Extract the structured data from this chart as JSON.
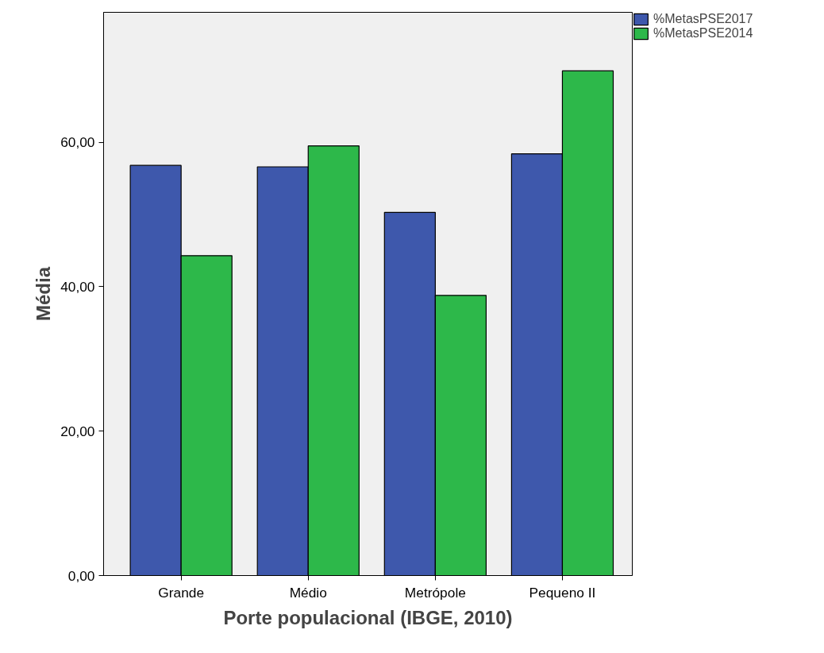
{
  "chart_data": {
    "type": "bar",
    "xlabel": "Porte populacional (IBGE, 2010)",
    "ylabel": "Média",
    "categories": [
      "Grande",
      "Médio",
      "Metrópole",
      "Pequeno II"
    ],
    "series": [
      {
        "name": "%MetasPSE2017",
        "color": "#3e58ac",
        "values": [
          56.8,
          56.6,
          50.3,
          58.4
        ]
      },
      {
        "name": "%MetasPSE2014",
        "color": "#2db84a",
        "values": [
          44.3,
          59.5,
          38.8,
          69.9
        ]
      }
    ],
    "ylim": [
      0,
      78
    ],
    "yticks": [
      {
        "value": 0,
        "label": "0,00"
      },
      {
        "value": 20,
        "label": "20,00"
      },
      {
        "value": 40,
        "label": "40,00"
      },
      {
        "value": 60,
        "label": "60,00"
      }
    ],
    "grid": false,
    "legend": "top right"
  }
}
